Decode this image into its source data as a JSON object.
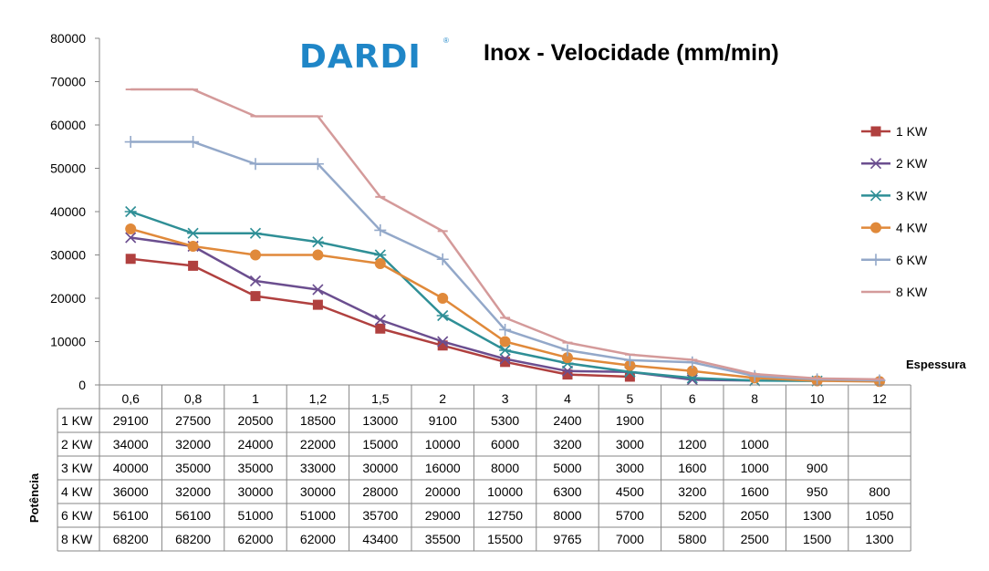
{
  "brand": {
    "name": "DARDI",
    "mark": "®"
  },
  "chart_data": {
    "type": "line",
    "title": "Inox - Velocidade (mm/min)",
    "xlabel": "Espessura",
    "ylabel": "Potência",
    "categories": [
      "0,6",
      "0,8",
      "1",
      "1,2",
      "1,5",
      "2",
      "3",
      "4",
      "5",
      "6",
      "8",
      "10",
      "12"
    ],
    "ylim": [
      0,
      80000
    ],
    "yticks": [
      "0",
      "10000",
      "20000",
      "30000",
      "40000",
      "50000",
      "60000",
      "70000",
      "80000"
    ],
    "legend_position": "right",
    "grid": false,
    "series": [
      {
        "name": "1 KW",
        "color": "#b0403f",
        "marker": "square",
        "values": [
          29100,
          27500,
          20500,
          18500,
          13000,
          9100,
          5300,
          2400,
          1900,
          null,
          null,
          null,
          null
        ]
      },
      {
        "name": "2 KW",
        "color": "#6b4e8f",
        "marker": "x",
        "values": [
          34000,
          32000,
          24000,
          22000,
          15000,
          10000,
          6000,
          3200,
          3000,
          1200,
          1000,
          null,
          null
        ]
      },
      {
        "name": "3 KW",
        "color": "#2f8f96",
        "marker": "asterisk",
        "values": [
          40000,
          35000,
          35000,
          33000,
          30000,
          16000,
          8000,
          5000,
          3000,
          1600,
          1000,
          900,
          null
        ]
      },
      {
        "name": "4 KW",
        "color": "#e0893a",
        "marker": "circle",
        "values": [
          36000,
          32000,
          30000,
          30000,
          28000,
          20000,
          10000,
          6300,
          4500,
          3200,
          1600,
          950,
          800
        ]
      },
      {
        "name": "6 KW",
        "color": "#93a8c9",
        "marker": "plus",
        "values": [
          56100,
          56100,
          51000,
          51000,
          35700,
          29000,
          12750,
          8000,
          5700,
          5200,
          2050,
          1300,
          1050
        ]
      },
      {
        "name": "8 KW",
        "color": "#d49a9a",
        "marker": "dash",
        "values": [
          68200,
          68200,
          62000,
          62000,
          43400,
          35500,
          15500,
          9765,
          7000,
          5800,
          2500,
          1500,
          1300
        ]
      }
    ],
    "table_rows": [
      {
        "label": "1 KW",
        "cells": [
          "29100",
          "27500",
          "20500",
          "18500",
          "13000",
          "9100",
          "5300",
          "2400",
          "1900",
          "",
          "",
          "",
          ""
        ]
      },
      {
        "label": "2 KW",
        "cells": [
          "34000",
          "32000",
          "24000",
          "22000",
          "15000",
          "10000",
          "6000",
          "3200",
          "3000",
          "1200",
          "1000",
          "",
          ""
        ]
      },
      {
        "label": "3 KW",
        "cells": [
          "40000",
          "35000",
          "35000",
          "33000",
          "30000",
          "16000",
          "8000",
          "5000",
          "3000",
          "1600",
          "1000",
          "900",
          ""
        ]
      },
      {
        "label": "4 KW",
        "cells": [
          "36000",
          "32000",
          "30000",
          "30000",
          "28000",
          "20000",
          "10000",
          "6300",
          "4500",
          "3200",
          "1600",
          "950",
          "800"
        ]
      },
      {
        "label": "6 KW",
        "cells": [
          "56100",
          "56100",
          "51000",
          "51000",
          "35700",
          "29000",
          "12750",
          "8000",
          "5700",
          "5200",
          "2050",
          "1300",
          "1050"
        ]
      },
      {
        "label": "8 KW",
        "cells": [
          "68200",
          "68200",
          "62000",
          "62000",
          "43400",
          "35500",
          "15500",
          "9765",
          "7000",
          "5800",
          "2500",
          "1500",
          "1300"
        ]
      }
    ]
  }
}
